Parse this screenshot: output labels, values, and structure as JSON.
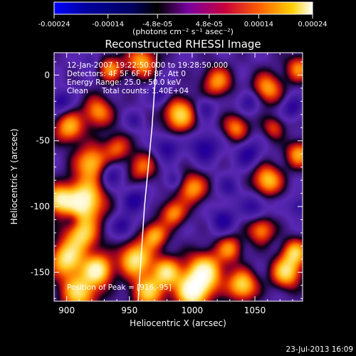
{
  "chart_data": {
    "type": "heatmap",
    "title": "Reconstructed RHESSI Image",
    "xlabel": "Heliocentric X (arcsec)",
    "ylabel": "Heliocentric Y (arcsec)",
    "xlim": [
      890,
      1088
    ],
    "ylim": [
      -172,
      17
    ],
    "xticks": [
      900,
      950,
      1000,
      1050
    ],
    "yticks": [
      0,
      -50,
      -100,
      -150
    ],
    "x_tick_labels": [
      "900",
      "950",
      "1000",
      "1050"
    ],
    "y_tick_labels": [
      "0",
      "-50",
      "-100",
      "-150"
    ],
    "colorbar": {
      "range": [
        -0.00024,
        0.00024
      ],
      "ticks": [
        -0.00024,
        -0.00014,
        -4.8e-05,
        4.8e-05,
        0.00014,
        0.00024
      ],
      "tick_labels": [
        "-0.00024",
        "-0.00014",
        "-4.8e-05",
        "4.8e-05",
        "0.00014",
        "0.00024"
      ],
      "unit_label": "(photons cm⁻² s⁻¹ asec⁻²)",
      "colormap": [
        "#0000ff",
        "#0000a0",
        "#000060",
        "#000000",
        "#7a00a0",
        "#c8003c",
        "#ff6400",
        "#ffd000",
        "#ffffff"
      ]
    },
    "info": {
      "time": "12-Jan-2007 19:22:50.000 to 19:28:50.000",
      "detectors": "Detectors: 4F 5F 6F 7F 8F, Att 0",
      "energy": "Energy Range: 25.0 - 50.0 keV",
      "clean": "Clean",
      "counts": "Total counts: 1.40E+04"
    },
    "peak_label": "Position of Peak = [916,-95]",
    "peak": [
      916,
      -95
    ],
    "limb_curve_points": [
      [
        972,
        17
      ],
      [
        968,
        -40
      ],
      [
        962,
        -100
      ],
      [
        957,
        -172
      ]
    ],
    "blobs": [
      [
        913,
        -96,
        11,
        2.9
      ],
      [
        893,
        -95,
        7,
        2.1
      ],
      [
        920,
        -67,
        9,
        2.0
      ],
      [
        902,
        -40,
        8,
        1.8
      ],
      [
        925,
        -28,
        8,
        1.6
      ],
      [
        940,
        -55,
        7,
        1.3
      ],
      [
        912,
        -122,
        9,
        2.0
      ],
      [
        900,
        -140,
        9,
        2.3
      ],
      [
        925,
        -148,
        8,
        2.5
      ],
      [
        910,
        -165,
        10,
        2.2
      ],
      [
        955,
        -140,
        9,
        2.4
      ],
      [
        970,
        -122,
        7,
        1.8
      ],
      [
        980,
        -150,
        8,
        2.1
      ],
      [
        965,
        -165,
        9,
        2.0
      ],
      [
        1000,
        -165,
        9,
        2.7
      ],
      [
        1010,
        -150,
        10,
        2.6
      ],
      [
        1040,
        -160,
        8,
        2.2
      ],
      [
        1075,
        -150,
        8,
        2.2
      ],
      [
        1082,
        -135,
        7,
        1.9
      ],
      [
        1055,
        -118,
        7,
        1.6
      ],
      [
        1030,
        -132,
        7,
        1.5
      ],
      [
        1060,
        -80,
        8,
        2.0
      ],
      [
        1085,
        -60,
        7,
        1.7
      ],
      [
        1000,
        -86,
        8,
        1.7
      ],
      [
        985,
        -105,
        7,
        1.6
      ],
      [
        960,
        -70,
        8,
        1.3
      ],
      [
        990,
        -30,
        9,
        2.1
      ],
      [
        1020,
        -5,
        8,
        1.6
      ],
      [
        1060,
        -10,
        8,
        1.7
      ],
      [
        1085,
        5,
        7,
        1.5
      ],
      [
        1035,
        -40,
        7,
        1.5
      ],
      [
        960,
        10,
        8,
        1.8
      ],
      [
        935,
        5,
        7,
        1.5
      ],
      [
        1065,
        -40,
        6,
        1.1
      ],
      [
        895,
        -20,
        6,
        -1.0
      ],
      [
        935,
        -75,
        7,
        -1.0
      ],
      [
        955,
        -95,
        7,
        -1.0
      ],
      [
        945,
        -115,
        6,
        -1.0
      ],
      [
        1010,
        -55,
        8,
        -1.1
      ],
      [
        1045,
        -60,
        7,
        -1.0
      ],
      [
        980,
        -55,
        7,
        -1.0
      ],
      [
        1050,
        -100,
        7,
        -0.9
      ],
      [
        1025,
        -110,
        7,
        -1.0
      ],
      [
        975,
        -15,
        6,
        -0.9
      ],
      [
        1010,
        -25,
        6,
        -0.8
      ],
      [
        1045,
        -20,
        6,
        -0.9
      ],
      [
        1080,
        -25,
        6,
        -0.9
      ],
      [
        905,
        -110,
        5,
        -0.7
      ],
      [
        985,
        -80,
        5,
        -0.8
      ],
      [
        1085,
        -100,
        6,
        -0.8
      ],
      [
        1030,
        -85,
        6,
        -0.7
      ],
      [
        955,
        -35,
        5,
        -0.6
      ],
      [
        920,
        12,
        5,
        -0.6
      ]
    ]
  },
  "footer": {
    "date": "23-Jul-2013 16:09"
  }
}
